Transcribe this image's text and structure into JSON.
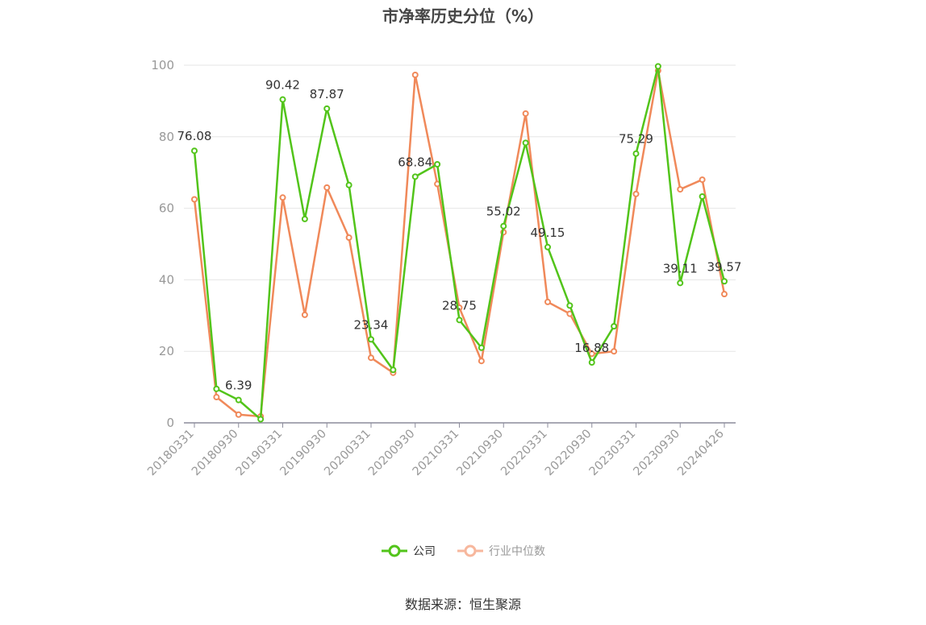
{
  "title": "市净率历史分位（%）",
  "source": "数据来源：恒生聚源",
  "legend": {
    "company": "公司",
    "industry": "行业中位数"
  },
  "colors": {
    "company": "#52c41a",
    "industry": "#f0895a",
    "axis": "#999999",
    "grid": "#e6e6e6",
    "label": "#333333"
  },
  "chart_data": {
    "type": "line",
    "title": "市净率历史分位（%）",
    "xlabel": "",
    "ylabel": "",
    "ylim": [
      0,
      100
    ],
    "yticks": [
      0,
      20,
      40,
      60,
      80,
      100
    ],
    "grid": true,
    "legend_position": "bottom",
    "x_tick_labels": [
      "20180331",
      "20180930",
      "20190331",
      "20190930",
      "20200331",
      "20200930",
      "20210331",
      "20210930",
      "20220331",
      "20220930",
      "20230331",
      "20230930",
      "20240426"
    ],
    "x_count": 25,
    "series": [
      {
        "name": "公司",
        "values": [
          76.08,
          9.5,
          6.39,
          1.0,
          90.42,
          57.0,
          87.87,
          66.5,
          23.34,
          14.8,
          68.84,
          72.3,
          28.75,
          21.0,
          55.02,
          78.3,
          49.15,
          32.8,
          16.88,
          27.0,
          75.29,
          99.7,
          39.11,
          63.3,
          39.57
        ],
        "labels": {
          "0": "76.08",
          "2": "6.39",
          "4": "90.42",
          "6": "87.87",
          "8": "23.34",
          "10": "68.84",
          "12": "28.75",
          "14": "55.02",
          "16": "49.15",
          "18": "16.88",
          "20": "75.29",
          "22": "39.11",
          "24": "39.57"
        }
      },
      {
        "name": "行业中位数",
        "values": [
          62.5,
          7.2,
          2.3,
          1.8,
          63.0,
          30.2,
          65.8,
          51.8,
          18.2,
          14.0,
          97.3,
          66.8,
          32.2,
          17.3,
          53.3,
          86.5,
          33.8,
          30.5,
          19.3,
          20.0,
          64.0,
          98.5,
          65.3,
          68.0,
          36.0
        ]
      }
    ]
  }
}
